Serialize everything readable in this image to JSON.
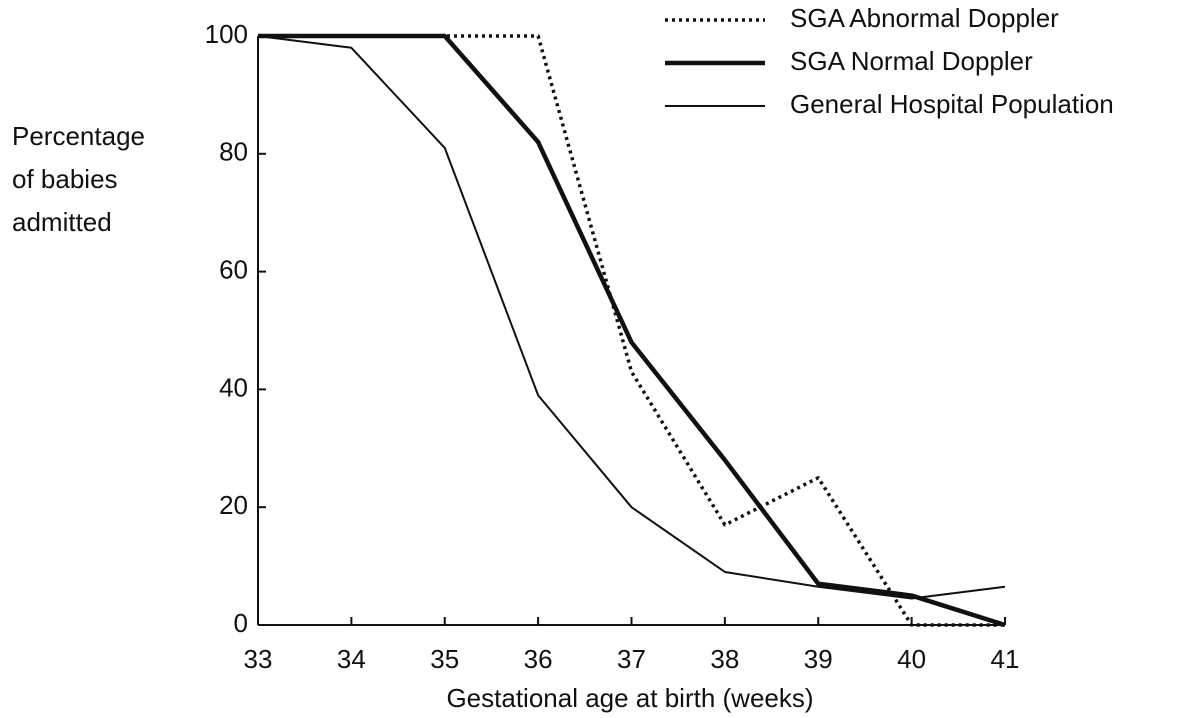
{
  "chart_data": {
    "type": "line",
    "ylabel": "Percentage\nof babies\nadmitted",
    "xlabel": "Gestational age at birth (weeks)",
    "x": [
      33,
      34,
      35,
      36,
      37,
      38,
      39,
      40,
      41
    ],
    "series": [
      {
        "name": "SGA Abnormal Doppler",
        "color": "#111111",
        "linestyle": "dotted",
        "linewidth": 3.5,
        "values": [
          100,
          100,
          100,
          100,
          43,
          17,
          25,
          0,
          0
        ]
      },
      {
        "name": "SGA Normal Doppler",
        "color": "#111111",
        "linestyle": "solid",
        "linewidth": 4.5,
        "values": [
          100,
          100,
          100,
          82,
          48,
          28,
          7,
          5,
          0
        ]
      },
      {
        "name": "General Hospital Population",
        "color": "#111111",
        "linestyle": "solid",
        "linewidth": 2,
        "values": [
          100,
          98,
          81,
          39,
          20,
          9,
          6.5,
          4.5,
          6.5
        ]
      }
    ],
    "xlim": [
      33,
      41
    ],
    "ylim": [
      0,
      100
    ],
    "xticks": [
      33,
      34,
      35,
      36,
      37,
      38,
      39,
      40,
      41
    ],
    "yticks": [
      0,
      20,
      40,
      60,
      80,
      100
    ],
    "legend": "top-right",
    "grid": false
  }
}
